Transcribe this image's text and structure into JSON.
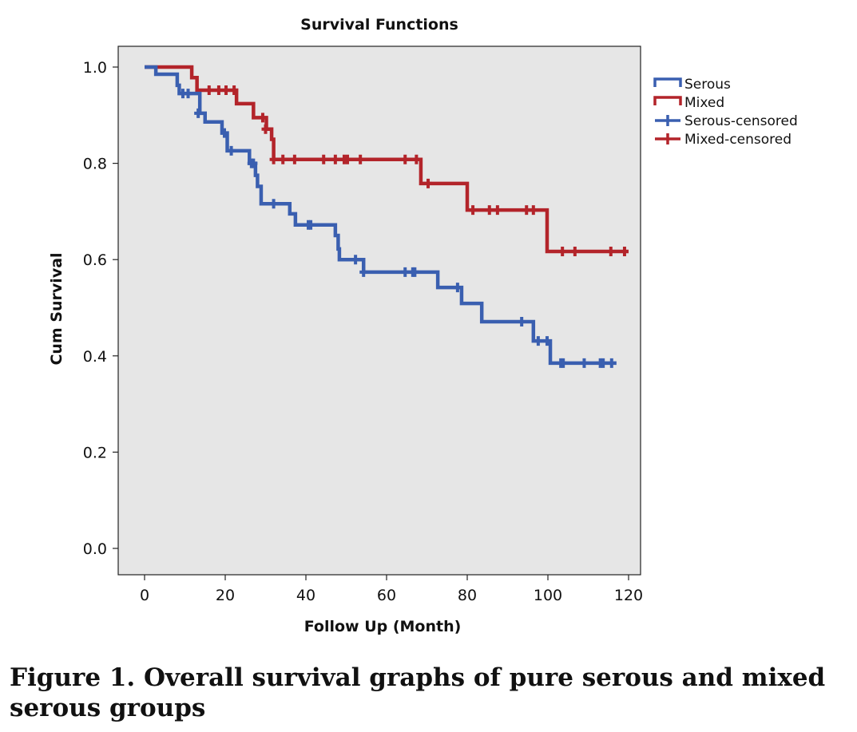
{
  "chart_data": {
    "type": "line",
    "subtype": "kaplan-meier-step",
    "title": "Survival Functions",
    "xlabel": "Follow Up (Month)",
    "ylabel": "Cum Survival",
    "xlim": [
      -5,
      128
    ],
    "ylim": [
      -0.09,
      1.09
    ],
    "xticks": [
      0,
      20,
      40,
      60,
      80,
      100,
      120
    ],
    "yticks": [
      0.0,
      0.2,
      0.4,
      0.6,
      0.8,
      1.0
    ],
    "ytick_labels": [
      "0.0",
      "0.2",
      "0.4",
      "0.6",
      "0.8",
      "1.0"
    ],
    "grid": false,
    "background": "#e6e6e6",
    "legend_position": "right-top",
    "legend": [
      "Serous",
      "Mixed",
      "Serous-censored",
      "Mixed-censored"
    ],
    "series": [
      {
        "name": "Serous",
        "color": "#3a5fb0",
        "steps": [
          [
            0,
            1.0
          ],
          [
            2.8,
            0.985
          ],
          [
            8.1,
            0.962
          ],
          [
            8.6,
            0.945
          ],
          [
            13.7,
            0.904
          ],
          [
            15,
            0.886
          ],
          [
            19.2,
            0.863
          ],
          [
            20.5,
            0.826
          ],
          [
            26,
            0.8
          ],
          [
            27.5,
            0.775
          ],
          [
            28,
            0.752
          ],
          [
            28.9,
            0.716
          ],
          [
            36,
            0.695
          ],
          [
            37.4,
            0.672
          ],
          [
            47.3,
            0.65
          ],
          [
            48,
            0.622
          ],
          [
            48.3,
            0.6
          ],
          [
            54.3,
            0.574
          ],
          [
            72.7,
            0.542
          ],
          [
            78.6,
            0.509
          ],
          [
            83.6,
            0.471
          ],
          [
            96.4,
            0.431
          ],
          [
            100.6,
            0.385
          ]
        ],
        "end": 117,
        "censored": [
          [
            9.5,
            0.945
          ],
          [
            10.8,
            0.945
          ],
          [
            13.3,
            0.904
          ],
          [
            19.8,
            0.863
          ],
          [
            21.5,
            0.826
          ],
          [
            26.5,
            0.8
          ],
          [
            27,
            0.8
          ],
          [
            32,
            0.716
          ],
          [
            40.6,
            0.672
          ],
          [
            41.2,
            0.672
          ],
          [
            52.3,
            0.6
          ],
          [
            54.3,
            0.574
          ],
          [
            64.6,
            0.574
          ],
          [
            66.5,
            0.574
          ],
          [
            67,
            0.574
          ],
          [
            77.6,
            0.542
          ],
          [
            93.5,
            0.471
          ],
          [
            97.6,
            0.431
          ],
          [
            99.8,
            0.431
          ],
          [
            103.2,
            0.385
          ],
          [
            103.8,
            0.385
          ],
          [
            109,
            0.385
          ],
          [
            113,
            0.385
          ],
          [
            113.7,
            0.385
          ],
          [
            115.8,
            0.385
          ]
        ]
      },
      {
        "name": "Mixed",
        "color": "#b3242a",
        "steps": [
          [
            0,
            1.0
          ],
          [
            11.7,
            0.978
          ],
          [
            13,
            0.952
          ],
          [
            22.8,
            0.924
          ],
          [
            27,
            0.895
          ],
          [
            30.2,
            0.871
          ],
          [
            31.5,
            0.85
          ],
          [
            32,
            0.808
          ],
          [
            68.5,
            0.758
          ],
          [
            80,
            0.703
          ],
          [
            99.8,
            0.617
          ]
        ],
        "end": 120,
        "censored": [
          [
            16,
            0.952
          ],
          [
            18.4,
            0.952
          ],
          [
            20.2,
            0.952
          ],
          [
            22.2,
            0.952
          ],
          [
            29.3,
            0.895
          ],
          [
            30,
            0.871
          ],
          [
            32,
            0.808
          ],
          [
            34.3,
            0.808
          ],
          [
            37.2,
            0.808
          ],
          [
            44.4,
            0.808
          ],
          [
            47.3,
            0.808
          ],
          [
            49.5,
            0.808
          ],
          [
            50.3,
            0.808
          ],
          [
            53.5,
            0.808
          ],
          [
            64.6,
            0.808
          ],
          [
            67.4,
            0.808
          ],
          [
            70.3,
            0.758
          ],
          [
            81.4,
            0.703
          ],
          [
            85.5,
            0.703
          ],
          [
            87.5,
            0.703
          ],
          [
            94.7,
            0.703
          ],
          [
            96.4,
            0.703
          ],
          [
            103.6,
            0.617
          ],
          [
            106.7,
            0.617
          ],
          [
            115.6,
            0.617
          ],
          [
            119,
            0.617
          ]
        ]
      }
    ]
  },
  "caption": "Figure 1. Overall survival graphs of pure serous and mixed serous groups"
}
